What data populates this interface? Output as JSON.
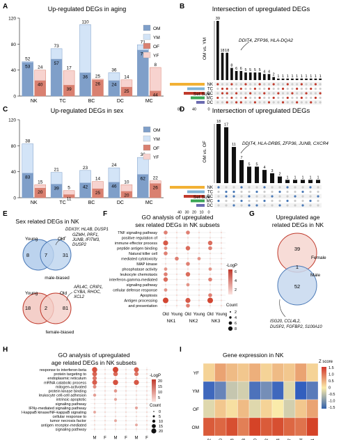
{
  "colors": {
    "OM": "#7f9fc9",
    "YM": "#d3e4f7",
    "OF": "#d98070",
    "YF": "#f7d3cf",
    "red": "#c0392b",
    "blue": "#4a79b7",
    "gridgray": "#d9d9d9"
  },
  "panelA": {
    "letter": "A",
    "title": "Up-regulated DEGs in aging",
    "chart_data": {
      "type": "bar",
      "categories": [
        "NK",
        "TC",
        "BC",
        "DC",
        "MC"
      ],
      "ylim": [
        0,
        120
      ],
      "yticks": [
        0,
        40,
        80,
        120
      ],
      "series": [
        {
          "name": "OM",
          "values": [
            53,
            57,
            36,
            24,
            79
          ]
        },
        {
          "name": "YM",
          "values": [
            52,
            73,
            110,
            36,
            71
          ]
        },
        {
          "name": "OF",
          "values": [
            40,
            39,
            26,
            25,
            44
          ]
        },
        {
          "name": "YF",
          "values": [
            24,
            17,
            25,
            14,
            8
          ]
        }
      ],
      "labels_male": [
        [
          52,
          53
        ],
        [
          73,
          57
        ],
        [
          110,
          36
        ],
        [
          36,
          24
        ],
        [
          71,
          79
        ]
      ],
      "labels_female": [
        [
          24,
          40
        ],
        [
          17,
          39
        ],
        [
          25,
          26
        ],
        [
          14,
          25
        ],
        [
          8,
          44
        ]
      ]
    },
    "legend": [
      "OM",
      "YM",
      "OF",
      "YF"
    ]
  },
  "panelB": {
    "letter": "B",
    "title": "Intersection of upregulated DEGs",
    "ylabel": "OM vs. YM",
    "chart_data": {
      "type": "bar",
      "values": [
        39,
        18,
        18,
        8,
        6,
        6,
        5,
        5,
        5,
        5,
        4,
        4,
        2,
        1,
        1,
        1,
        1,
        1,
        1,
        1,
        1,
        1,
        1
      ]
    },
    "annotation": "DDIT4, ZFP36, HLA-DQA2",
    "sets": [
      "NK",
      "TC",
      "BC",
      "MC",
      "DC"
    ],
    "setsize_label": "Set Size",
    "setsize_ticks": [
      "80",
      "40",
      "0"
    ]
  },
  "panelC": {
    "letter": "C",
    "title": "Up-regulated DEGs in sex",
    "chart_data": {
      "type": "bar",
      "categories": [
        "NK",
        "TC",
        "BC",
        "DC",
        "MC"
      ],
      "ylim": [
        0,
        120
      ],
      "yticks": [
        0,
        40,
        80,
        120
      ],
      "labels_male": [
        [
          38,
          83
        ],
        [
          21,
          39
        ],
        [
          23,
          42
        ],
        [
          24,
          46
        ],
        [
          36,
          62
        ]
      ],
      "labels_female": [
        [
          15,
          20
        ],
        [
          5,
          11
        ],
        [
          14,
          25
        ],
        [
          10,
          20
        ],
        [
          22,
          26
        ]
      ]
    },
    "legend": [
      "OM",
      "YM",
      "OF",
      "YF"
    ]
  },
  "panelD": {
    "letter": "D",
    "title": "Intersection of upregulated DEGs",
    "ylabel": "OM vs. OF",
    "chart_data": {
      "type": "bar",
      "values": [
        18,
        17,
        11,
        7,
        5,
        5,
        4,
        3,
        2,
        1,
        1,
        1,
        1,
        1
      ]
    },
    "annotation": "DDIT4, HLA-DRB5, ZFP36, JUNB, CXCR4",
    "sets": [
      "NK",
      "TC",
      "BC",
      "MC",
      "DC"
    ],
    "setsize_label": "Set Size",
    "setsize_ticks": [
      "40",
      "30",
      "20",
      "10",
      "0"
    ]
  },
  "panelE": {
    "letter": "E",
    "title": "Sex related DEGs in NK",
    "male": {
      "left": "Young",
      "right": "Old",
      "a": "8",
      "ab": "7",
      "b": "31",
      "caption": "male-biased",
      "genes": [
        "DDX3Y, HLAB, DUSP1",
        "GZMH, PRF1,",
        "JUNB, IFITM3,",
        "DUSP2"
      ]
    },
    "female": {
      "left": "Young",
      "right": "Old",
      "a": "18",
      "ab": "2",
      "b": "81",
      "caption": "female-biased",
      "genes": [
        "ARL4C, CRIP1,",
        "CYBA, RHOC,",
        "XCL2"
      ]
    }
  },
  "panelF": {
    "letter": "F",
    "title": "GO analysis of upregulated",
    "title2": "sex related DEGs in NK subsets",
    "terms": [
      "TNF signaling pathway",
      "positive regulation of",
      "immune effector process",
      "peptide antigen binding",
      "Natural killer cell",
      "mediated cytotoxicity",
      "MAP kinase",
      "phosphatase activity",
      "leukocyte chemotaxis",
      "interferon-gamma-mediated",
      "signaling pathway",
      "cellular defense response",
      "Apoptosis",
      "Antigen processing",
      "and presentation"
    ],
    "xlabels": [
      "Old",
      "Young",
      "Old",
      "Young",
      "Old",
      "Young"
    ],
    "groups": [
      "NK1",
      "NK2",
      "NK3"
    ],
    "legend_title": "-LogP",
    "legend_ticks": [
      "6",
      "4",
      "2"
    ],
    "count_title": "Count",
    "count_ticks": [
      "2",
      "4",
      "6",
      "8"
    ]
  },
  "panelG": {
    "letter": "G",
    "title": "Upregulated age",
    "title2": "related DEGs in NK",
    "top": "39",
    "mid": "1",
    "bottom": "52",
    "top_label": "Female",
    "bottom_label": "Male",
    "genes": [
      "ISG20, CCL4L2,",
      "DUSP2, FGFBP2, S100A10"
    ]
  },
  "panelH": {
    "letter": "H",
    "title": "GO analysis of upregulated",
    "title2": "age related DEGs in NK subsets",
    "terms": [
      "response to interferon-beta",
      "protein targeting to",
      "endoplasmic reticulum",
      "mRNA catabolic process",
      "mitogen-activated",
      "protein kinase binding",
      "leukocyte cell-cell adhesion",
      "intrinsic apoptotic",
      "signaling pathway",
      "IFNγ-mediated signaling pathway",
      "I-kappaB kinase/NF-kappaB signaling",
      "cellular response to",
      "tumor necrosis factor",
      "antigen receptor-mediated",
      "signaling pathway"
    ],
    "xlabels": [
      "M",
      "F",
      "M",
      "F",
      "M",
      "F"
    ],
    "groups": [
      "NK1",
      "NK2",
      "NK3"
    ],
    "legend_title": "-LogP",
    "legend_ticks": [
      "20",
      "15",
      "10",
      "5"
    ],
    "count_title": "Count",
    "count_ticks": [
      "0",
      "5",
      "10",
      "15",
      "20"
    ]
  },
  "panelI": {
    "letter": "I",
    "title": "Gene expression in NK",
    "rows": [
      "YF",
      "YM",
      "OF",
      "OM"
    ],
    "genes": [
      "DUSP2",
      "S100A10",
      "JUNB",
      "IFITM3",
      "ISG20",
      "CCL4L2",
      "CXCR4",
      "NKG7",
      "GZMH",
      "PRF1"
    ],
    "legend_title": "Z score",
    "legend_ticks": [
      "1.5",
      "1.0",
      "0.5",
      "0",
      "-0.5",
      "-1.0",
      "-1.5"
    ]
  }
}
